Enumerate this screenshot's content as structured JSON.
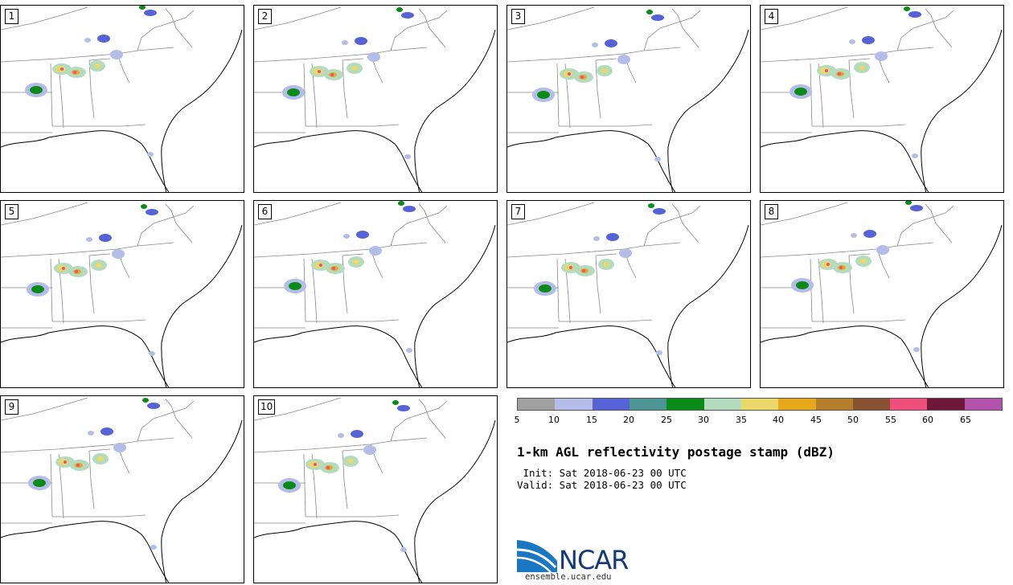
{
  "figure": {
    "title": "1-km AGL reflectivity postage stamp (dBZ)",
    "init": " Init: Sat 2018-06-23 00 UTC",
    "valid": "Valid: Sat 2018-06-23 00 UTC"
  },
  "members": [
    "1",
    "2",
    "3",
    "4",
    "5",
    "6",
    "7",
    "8",
    "9",
    "10"
  ],
  "colorbar": {
    "ticks": [
      "5",
      "10",
      "15",
      "20",
      "25",
      "30",
      "35",
      "40",
      "45",
      "50",
      "55",
      "60",
      "65"
    ],
    "colors": [
      "#a0a0a0",
      "#b4bce8",
      "#5563d6",
      "#4e9596",
      "#0a8a18",
      "#b5dbbe",
      "#ead96a",
      "#e8a81c",
      "#b47e2a",
      "#885131",
      "#ef4f7c",
      "#6e1839",
      "#b352aa"
    ]
  },
  "logo": {
    "name": "NCAR",
    "url": "ensemble.ucar.edu"
  },
  "colors": {
    "state_lines": "#888888",
    "coast": "#000000",
    "brand": "#123a78"
  }
}
